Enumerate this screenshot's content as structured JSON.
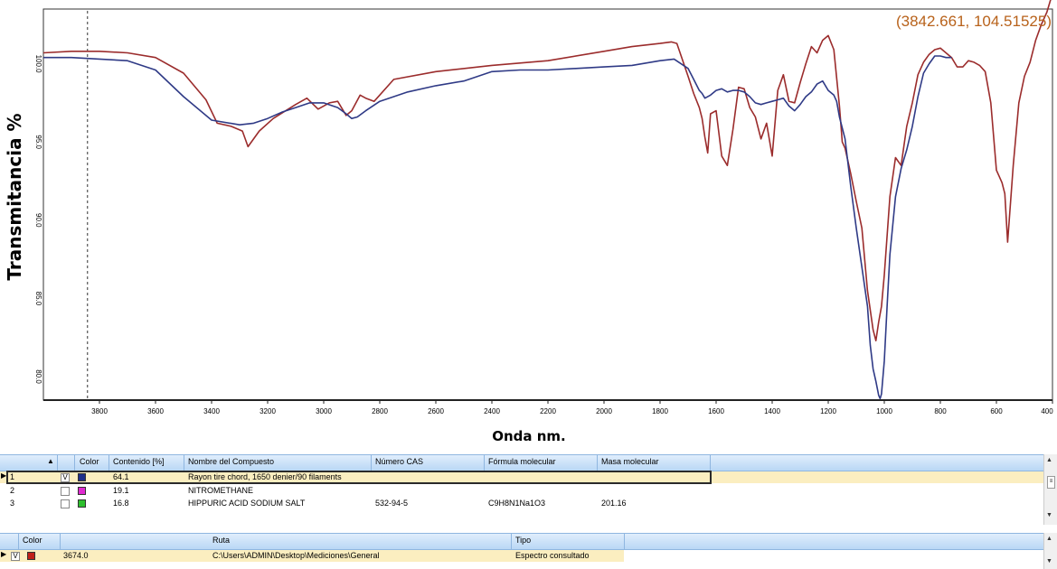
{
  "chart_data": {
    "type": "line",
    "xlabel": "Onda nm.",
    "ylabel": "Transmitancia %",
    "xlim": [
      4000,
      400
    ],
    "ylim": [
      78.5,
      103.5
    ],
    "x_ticks": [
      3800,
      3600,
      3400,
      3200,
      3000,
      2800,
      2600,
      2400,
      2200,
      2000,
      1800,
      1600,
      1400,
      1200,
      1000,
      800,
      600,
      400
    ],
    "y_ticks": [
      80.0,
      85.0,
      90.0,
      95.0,
      100.0
    ],
    "grid": false,
    "cursor_x": 3842.661,
    "cursor_label": "(3842.661, 104.51525)",
    "series": [
      {
        "color": "#9b2c2c",
        "x": [
          4000,
          3900,
          3800,
          3700,
          3600,
          3500,
          3420,
          3380,
          3330,
          3290,
          3270,
          3230,
          3180,
          3100,
          3060,
          3020,
          2980,
          2950,
          2920,
          2900,
          2870,
          2850,
          2820,
          2750,
          2600,
          2400,
          2200,
          2000,
          1900,
          1800,
          1760,
          1740,
          1700,
          1680,
          1660,
          1650,
          1640,
          1630,
          1620,
          1600,
          1580,
          1560,
          1540,
          1520,
          1500,
          1480,
          1460,
          1440,
          1420,
          1400,
          1380,
          1360,
          1340,
          1320,
          1300,
          1280,
          1260,
          1240,
          1220,
          1200,
          1180,
          1160,
          1150,
          1140,
          1120,
          1100,
          1080,
          1060,
          1040,
          1030,
          1020,
          1010,
          1000,
          980,
          960,
          940,
          920,
          900,
          880,
          860,
          840,
          820,
          800,
          780,
          760,
          740,
          720,
          700,
          680,
          660,
          640,
          620,
          600,
          590,
          580,
          570,
          560,
          540,
          520,
          500,
          480,
          460,
          440,
          420,
          400
        ],
        "y": [
          100.7,
          100.8,
          100.8,
          100.7,
          100.4,
          99.4,
          97.7,
          96.2,
          96.0,
          95.7,
          94.7,
          95.7,
          96.5,
          97.4,
          97.8,
          97.1,
          97.5,
          97.6,
          96.7,
          97.0,
          98.0,
          97.8,
          97.6,
          99.0,
          99.5,
          99.9,
          100.2,
          100.8,
          101.1,
          101.3,
          101.4,
          101.3,
          99.2,
          98.1,
          97.2,
          96.5,
          95.3,
          94.3,
          96.8,
          97.0,
          94.1,
          93.5,
          95.8,
          98.5,
          98.4,
          97.2,
          96.6,
          95.2,
          96.2,
          94.1,
          98.3,
          99.3,
          97.6,
          97.5,
          98.8,
          100.0,
          101.1,
          100.7,
          101.5,
          101.8,
          100.9,
          97.3,
          95.0,
          94.6,
          93.0,
          91.2,
          89.5,
          85.5,
          83.0,
          82.3,
          83.5,
          84.5,
          86.5,
          91.5,
          94.0,
          93.5,
          96.0,
          97.5,
          99.3,
          100.1,
          100.6,
          100.9,
          101.0,
          100.7,
          100.4,
          99.8,
          99.8,
          100.2,
          100.1,
          99.9,
          99.5,
          97.5,
          93.2,
          92.8,
          92.4,
          91.7,
          88.6,
          93.5,
          97.5,
          99.2,
          100.1,
          101.5,
          102.5,
          103.3,
          104.5
        ]
      },
      {
        "color": "#2f3a86",
        "x": [
          4000,
          3900,
          3800,
          3700,
          3600,
          3500,
          3400,
          3300,
          3250,
          3200,
          3150,
          3100,
          3050,
          3000,
          2950,
          2920,
          2900,
          2880,
          2850,
          2800,
          2700,
          2600,
          2500,
          2400,
          2300,
          2200,
          2100,
          2000,
          1900,
          1800,
          1750,
          1700,
          1680,
          1660,
          1650,
          1640,
          1620,
          1600,
          1580,
          1560,
          1540,
          1520,
          1500,
          1480,
          1460,
          1440,
          1420,
          1400,
          1380,
          1360,
          1340,
          1320,
          1300,
          1280,
          1260,
          1240,
          1220,
          1200,
          1180,
          1170,
          1160,
          1140,
          1120,
          1100,
          1080,
          1060,
          1050,
          1040,
          1030,
          1020,
          1015,
          1010,
          1000,
          990,
          980,
          960,
          940,
          920,
          900,
          880,
          860,
          840,
          820,
          800,
          780,
          760
        ],
        "y": [
          100.4,
          100.4,
          100.3,
          100.2,
          99.6,
          97.9,
          96.4,
          96.1,
          96.2,
          96.5,
          96.9,
          97.2,
          97.5,
          97.5,
          97.2,
          96.8,
          96.5,
          96.6,
          97.0,
          97.6,
          98.2,
          98.6,
          98.9,
          99.5,
          99.6,
          99.6,
          99.7,
          99.8,
          99.9,
          100.2,
          100.3,
          99.7,
          99.0,
          98.3,
          98.1,
          97.8,
          98.0,
          98.3,
          98.4,
          98.2,
          98.3,
          98.3,
          98.2,
          97.9,
          97.5,
          97.4,
          97.5,
          97.6,
          97.7,
          97.8,
          97.3,
          97.0,
          97.4,
          97.9,
          98.2,
          98.7,
          98.9,
          98.3,
          98.0,
          97.6,
          96.6,
          95.2,
          92.2,
          89.5,
          87.0,
          84.5,
          82.0,
          80.5,
          79.7,
          78.8,
          78.6,
          78.9,
          81.0,
          84.5,
          87.8,
          91.5,
          93.3,
          94.5,
          96.0,
          97.9,
          99.4,
          100.0,
          100.5,
          100.5,
          100.4,
          100.4
        ]
      }
    ]
  },
  "table_compounds": {
    "headers": [
      "Color",
      "Contenido [%]",
      "Nombre del Compuesto",
      "Número CAS",
      "Fórmula molecular",
      "Masa molecular"
    ],
    "rows": [
      {
        "num": "1",
        "checked": "V",
        "color": "#1f2f8a",
        "content": "64.1",
        "name": "Rayon tire chord, 1650 denier/90 filaments",
        "cas": "",
        "formula": "",
        "mass": ""
      },
      {
        "num": "2",
        "checked": "",
        "color": "#e02ad0",
        "content": "19.1",
        "name": "NITROMETHANE",
        "cas": "",
        "formula": "",
        "mass": ""
      },
      {
        "num": "3",
        "checked": "",
        "color": "#2ec02e",
        "content": "16.8",
        "name": "HIPPURIC ACID SODIUM SALT",
        "cas": "532-94-5",
        "formula": "C9H8N1Na1O3",
        "mass": "201.16"
      }
    ]
  },
  "table_spectra": {
    "headers": [
      "Color",
      "Ruta",
      "Tipo"
    ],
    "rows": [
      {
        "checked": "V",
        "color": "#c0201a",
        "id": "3674.0",
        "path": "C:\\Users\\ADMIN\\Desktop\\Mediciones\\General",
        "type": "Espectro consultado"
      }
    ]
  }
}
